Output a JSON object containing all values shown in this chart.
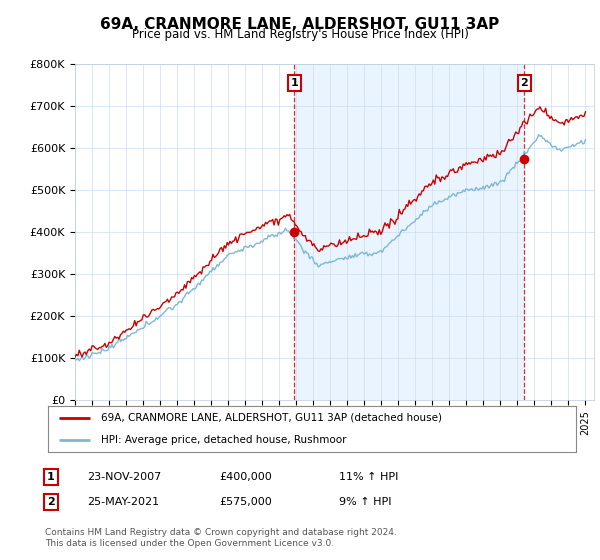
{
  "title": "69A, CRANMORE LANE, ALDERSHOT, GU11 3AP",
  "subtitle": "Price paid vs. HM Land Registry's House Price Index (HPI)",
  "ylim": [
    0,
    800000
  ],
  "yticks": [
    0,
    100000,
    200000,
    300000,
    400000,
    500000,
    600000,
    700000,
    800000
  ],
  "ytick_labels": [
    "£0",
    "£100K",
    "£200K",
    "£300K",
    "£400K",
    "£500K",
    "£600K",
    "£700K",
    "£800K"
  ],
  "sale1_x": 2007.896,
  "sale1_price": 400000,
  "sale2_x": 2021.413,
  "sale2_price": 575000,
  "hpi_color": "#7eb8d4",
  "price_color": "#cc0000",
  "vline_color": "#cc0000",
  "shade_color": "#ddeeff",
  "legend_label_price": "69A, CRANMORE LANE, ALDERSHOT, GU11 3AP (detached house)",
  "legend_label_hpi": "HPI: Average price, detached house, Rushmoor",
  "table_row1": [
    "1",
    "23-NOV-2007",
    "£400,000",
    "11% ↑ HPI"
  ],
  "table_row2": [
    "2",
    "25-MAY-2021",
    "£575,000",
    "9% ↑ HPI"
  ],
  "footnote": "Contains HM Land Registry data © Crown copyright and database right 2024.\nThis data is licensed under the Open Government Licence v3.0.",
  "background_color": "#ffffff",
  "grid_color": "#ccddee"
}
